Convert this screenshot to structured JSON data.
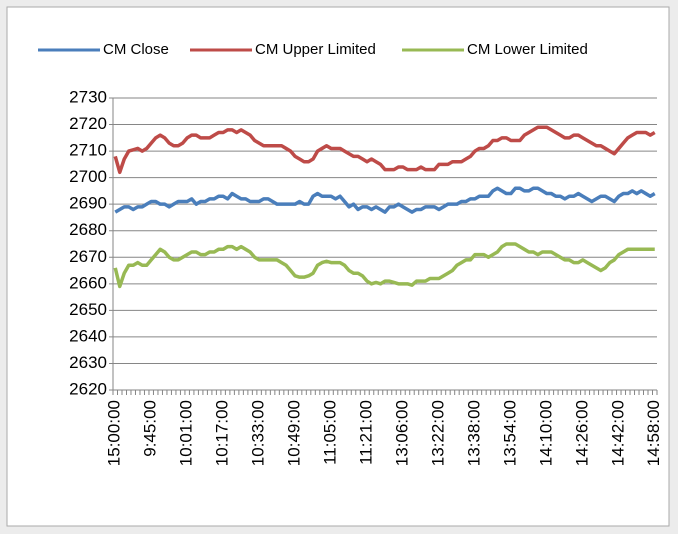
{
  "chart_data": {
    "type": "line",
    "categories": [
      "15:00:00",
      null,
      null,
      null,
      null,
      null,
      null,
      null,
      "9:45:00",
      null,
      null,
      null,
      null,
      null,
      null,
      null,
      "10:01:00",
      null,
      null,
      null,
      null,
      null,
      null,
      null,
      "10:17:00",
      null,
      null,
      null,
      null,
      null,
      null,
      null,
      "10:33:00",
      null,
      null,
      null,
      null,
      null,
      null,
      null,
      "10:49:00",
      null,
      null,
      null,
      null,
      null,
      null,
      null,
      "11:05:00",
      null,
      null,
      null,
      null,
      null,
      null,
      null,
      "11:21:00",
      null,
      null,
      null,
      null,
      null,
      null,
      null,
      "13:06:00",
      null,
      null,
      null,
      null,
      null,
      null,
      null,
      "13:22:00",
      null,
      null,
      null,
      null,
      null,
      null,
      null,
      "13:38:00",
      null,
      null,
      null,
      null,
      null,
      null,
      null,
      "13:54:00",
      null,
      null,
      null,
      null,
      null,
      null,
      null,
      "14:10:00",
      null,
      null,
      null,
      null,
      null,
      null,
      null,
      "14:26:00",
      null,
      null,
      null,
      null,
      null,
      null,
      null,
      "14:42:00",
      null,
      null,
      null,
      null,
      null,
      null,
      null,
      "14:58:00"
    ],
    "series": [
      {
        "name": "CM Close",
        "color": "#4a7ebb",
        "values": [
          2687,
          2688,
          2689,
          2689,
          2688,
          2689,
          2689,
          2690,
          2691,
          2691,
          2690,
          2690,
          2689,
          2690,
          2691,
          2691,
          2691,
          2692,
          2690,
          2691,
          2691,
          2692,
          2692,
          2693,
          2693,
          2692,
          2694,
          2693,
          2692,
          2692,
          2691,
          2691,
          2691,
          2692,
          2692,
          2691,
          2690,
          2690,
          2690,
          2690,
          2690,
          2691,
          2690,
          2690,
          2693,
          2694,
          2693,
          2693,
          2693,
          2692,
          2693,
          2691,
          2689,
          2690,
          2688,
          2689,
          2689,
          2688,
          2689,
          2688,
          2687,
          2689,
          2689,
          2690,
          2689,
          2688,
          2687,
          2688,
          2688,
          2689,
          2689,
          2689,
          2688,
          2689,
          2690,
          2690,
          2690,
          2691,
          2691,
          2692,
          2692,
          2693,
          2693,
          2693,
          2695,
          2696,
          2695,
          2694,
          2694,
          2696,
          2696,
          2695,
          2695,
          2696,
          2696,
          2695,
          2694,
          2694,
          2693,
          2693,
          2692,
          2693,
          2693,
          2694,
          2693,
          2692,
          2691,
          2692,
          2693,
          2693,
          2692,
          2691,
          2693,
          2694,
          2694,
          2695,
          2694,
          2695,
          2694,
          2693,
          2694
        ]
      },
      {
        "name": "CM Upper Limited",
        "color": "#be4b48",
        "values": [
          2708,
          2702,
          2707,
          2710,
          2710.5,
          2711,
          2710,
          2711,
          2713,
          2715,
          2716,
          2715,
          2713,
          2712,
          2712,
          2713,
          2715,
          2716,
          2716,
          2715,
          2715,
          2715,
          2716,
          2717,
          2717,
          2718,
          2718,
          2717,
          2718,
          2717,
          2716,
          2714,
          2713,
          2712,
          2712,
          2712,
          2712,
          2712,
          2711,
          2710,
          2708,
          2707,
          2706,
          2706,
          2707,
          2710,
          2711,
          2712,
          2711,
          2711,
          2711,
          2710,
          2709,
          2708,
          2708,
          2707,
          2706,
          2707,
          2706,
          2705,
          2703,
          2703,
          2703,
          2704,
          2704,
          2703,
          2703,
          2703,
          2704,
          2703,
          2703,
          2703,
          2705,
          2705,
          2705,
          2706,
          2706,
          2706,
          2707,
          2708,
          2710,
          2711,
          2711,
          2712,
          2714,
          2714,
          2715,
          2715,
          2714,
          2714,
          2714,
          2716,
          2717,
          2718,
          2719,
          2719,
          2719,
          2718,
          2717,
          2716,
          2715,
          2715,
          2716,
          2716,
          2715,
          2714,
          2713,
          2712,
          2712,
          2711,
          2710,
          2709,
          2711,
          2713,
          2715,
          2716,
          2717,
          2717,
          2717,
          2716,
          2717
        ]
      },
      {
        "name": "CM Lower Limited",
        "color": "#98b954",
        "values": [
          2666,
          2659,
          2664,
          2667,
          2667,
          2668,
          2667,
          2667,
          2669,
          2671,
          2673,
          2672,
          2670,
          2669,
          2669,
          2670,
          2671,
          2672,
          2672,
          2671,
          2671,
          2672,
          2672,
          2673,
          2673,
          2674,
          2674,
          2673,
          2674,
          2673,
          2672,
          2670,
          2669,
          2669,
          2669,
          2669,
          2669,
          2668,
          2667,
          2665,
          2663,
          2662.5,
          2662.5,
          2663,
          2664,
          2667,
          2668,
          2668.5,
          2668,
          2668,
          2668,
          2667,
          2665,
          2664,
          2664,
          2663,
          2661,
          2660,
          2660.5,
          2660,
          2661,
          2661,
          2660.5,
          2660,
          2660,
          2660,
          2659.5,
          2661,
          2661,
          2661,
          2662,
          2662,
          2662,
          2663,
          2664,
          2665,
          2667,
          2668,
          2669,
          2669,
          2671,
          2671,
          2671,
          2670,
          2671,
          2672,
          2674,
          2675,
          2675,
          2675,
          2674,
          2673,
          2672,
          2672,
          2671,
          2672,
          2672,
          2672,
          2671,
          2670,
          2669,
          2669,
          2668,
          2668,
          2669,
          2668,
          2667,
          2666,
          2665,
          2666,
          2668,
          2669,
          2671,
          2672,
          2673,
          2673,
          2673,
          2673,
          2673,
          2673,
          2673
        ]
      }
    ],
    "ylim": [
      2620,
      2730
    ],
    "yticks": [
      2620,
      2630,
      2640,
      2650,
      2660,
      2670,
      2680,
      2690,
      2700,
      2710,
      2720,
      2730
    ],
    "grid": true,
    "legend": "top"
  }
}
